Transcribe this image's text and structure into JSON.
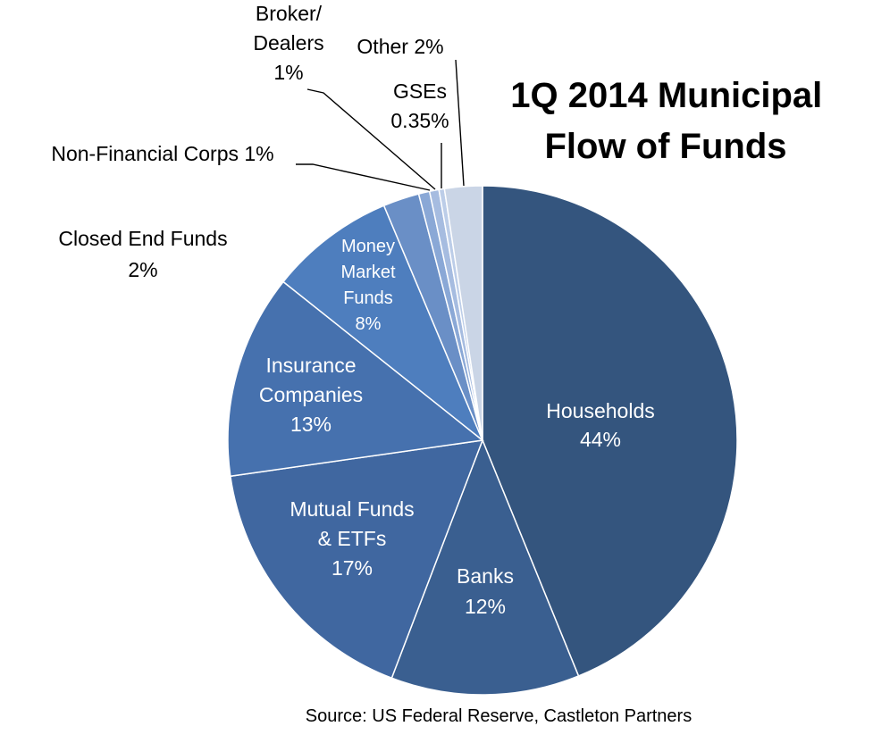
{
  "chart_data": {
    "type": "pie",
    "title_lines": [
      "1Q 2014 Municipal",
      "Flow of Funds"
    ],
    "source": "Source: US Federal Reserve, Castleton Partners",
    "start_angle_deg": -90,
    "direction": "clockwise",
    "slices": [
      {
        "key": "households",
        "label_lines": [
          "Households",
          "44%"
        ],
        "value": 44,
        "color": "#34557E",
        "placement": "inside"
      },
      {
        "key": "banks",
        "label_lines": [
          "Banks",
          "12%"
        ],
        "value": 12,
        "color": "#3A5F90",
        "placement": "inside"
      },
      {
        "key": "mutual-funds",
        "label_lines": [
          "Mutual Funds",
          "& ETFs",
          "17%"
        ],
        "value": 17,
        "color": "#4067A0",
        "placement": "inside"
      },
      {
        "key": "insurance",
        "label_lines": [
          "Insurance",
          "Companies",
          "13%"
        ],
        "value": 13,
        "color": "#4671AE",
        "placement": "inside"
      },
      {
        "key": "money-market",
        "label_lines": [
          "Money",
          "Market",
          "Funds",
          "8%"
        ],
        "value": 8,
        "color": "#4E7EBE",
        "placement": "inside"
      },
      {
        "key": "closed-end",
        "label_lines": [
          "Closed End Funds",
          "2%"
        ],
        "value": 2.3,
        "color": "#6A8FC6",
        "placement": "outside"
      },
      {
        "key": "non-financial",
        "label_lines": [
          "Non-Financial Corps  1%"
        ],
        "value": 0.7,
        "color": "#8AA8D6",
        "placement": "outside"
      },
      {
        "key": "broker-dealers",
        "label_lines": [
          "Broker/",
          "Dealers",
          "1%"
        ],
        "value": 0.6,
        "color": "#A6BCE0",
        "placement": "outside"
      },
      {
        "key": "gses",
        "label_lines": [
          "GSEs",
          "0.35%"
        ],
        "value": 0.35,
        "color": "#BCCDE8",
        "placement": "outside"
      },
      {
        "key": "other",
        "label_lines": [
          "Other 2%"
        ],
        "value": 2.4,
        "color": "#CAD5E6",
        "placement": "outside"
      }
    ]
  }
}
